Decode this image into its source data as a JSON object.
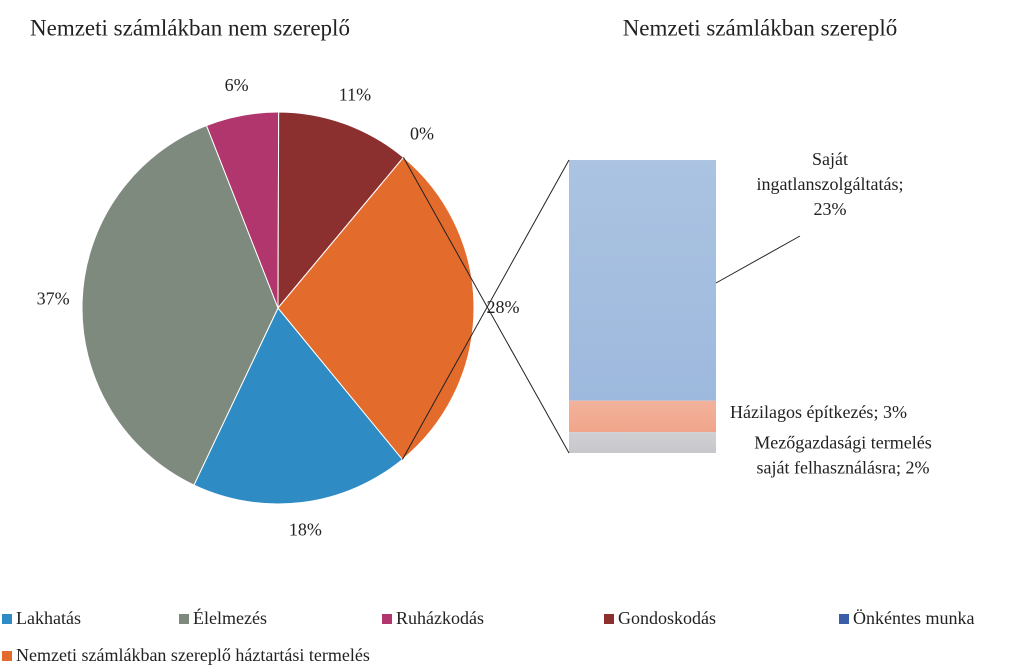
{
  "chart_data": [
    {
      "type": "pie",
      "title": "Nemzeti számlákban nem szereplő",
      "categories": [
        "Lakhatás",
        "Élelmezés",
        "Ruházkodás",
        "Gondoskodás",
        "Önkéntes munka",
        "Nemzeti számlákban szereplő háztartási termelés"
      ],
      "values": [
        18,
        37,
        6,
        11,
        0,
        28
      ],
      "value_labels": [
        "18%",
        "37%",
        "6%",
        "11%",
        "0%",
        "28%"
      ],
      "colors": [
        "#2e8bc4",
        "#7f8a7e",
        "#b0366d",
        "#8b2f2f",
        "#3a5ea8",
        "#e36b2c"
      ]
    },
    {
      "type": "stacked_bar",
      "title": "Nemzeti számlákban szereplő",
      "categories": [
        "Saját ingatlanszolgáltatás",
        "Házilagos építkezés",
        "Mezőgazdasági termelés saját felhasználásra"
      ],
      "values": [
        23,
        3,
        2
      ],
      "value_labels": [
        "Saját\ningatlanszolgáltatás;\n23%",
        "Házilagos építkezés; 3%",
        "Mezőgazdasági termelés\nsaját felhasználásra; 2%"
      ],
      "colors": [
        "#9db9dd",
        "#f0a58a",
        "#c8c8cc"
      ]
    }
  ]
}
